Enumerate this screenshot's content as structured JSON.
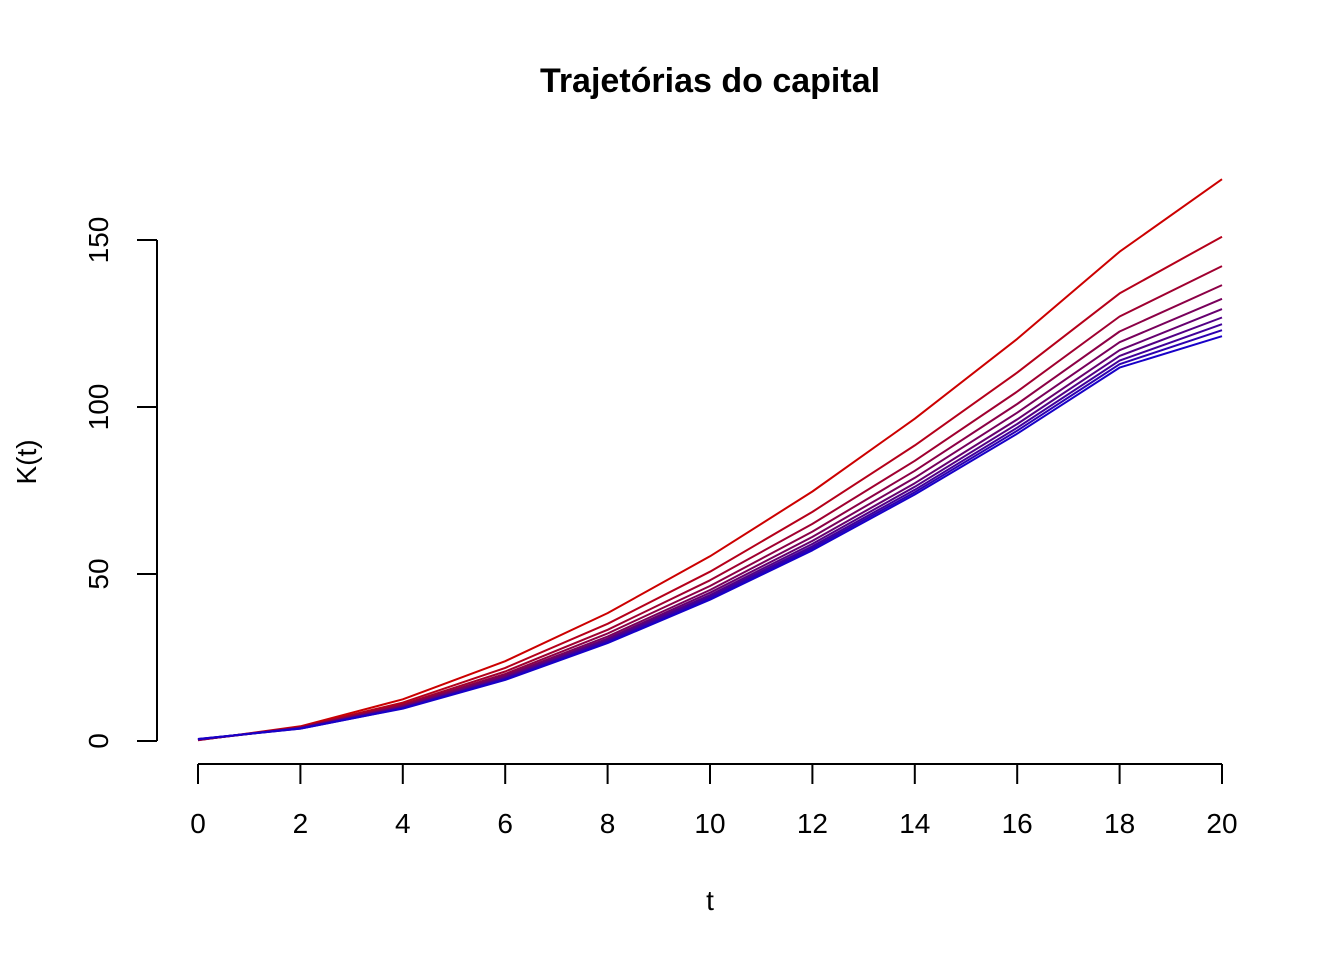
{
  "chart_data": {
    "type": "line",
    "title": "Trajetórias do capital",
    "xlabel": "t",
    "ylabel": "K(t)",
    "xlim": [
      0,
      20
    ],
    "ylim": [
      0,
      150
    ],
    "x_ticks": [
      "0",
      "2",
      "4",
      "6",
      "8",
      "10",
      "12",
      "14",
      "16",
      "18",
      "20"
    ],
    "y_ticks": [
      "0",
      "50",
      "100",
      "150"
    ],
    "grid": false,
    "legend": "none",
    "x": [
      0,
      2,
      4,
      6,
      8,
      10,
      12,
      14,
      16,
      18,
      20
    ],
    "series": [
      {
        "color": "#CC0000",
        "values": [
          0.2,
          4.4,
          12.5,
          23.9,
          38.3,
          55.3,
          74.7,
          96.5,
          120.4,
          146.5,
          168.2
        ]
      },
      {
        "color": "#B5001A",
        "values": [
          0.3,
          4.2,
          11.5,
          21.9,
          35.1,
          50.7,
          68.6,
          88.5,
          110.3,
          134.0,
          151.0
        ]
      },
      {
        "color": "#A00030",
        "values": [
          0.3,
          4.1,
          11.0,
          20.8,
          33.3,
          48.1,
          65.0,
          83.9,
          104.6,
          127.1,
          142.2
        ]
      },
      {
        "color": "#8C0046",
        "values": [
          0.4,
          4.0,
          10.6,
          20.1,
          32.2,
          46.4,
          62.7,
          80.9,
          100.9,
          122.6,
          136.5
        ]
      },
      {
        "color": "#78005C",
        "values": [
          0.4,
          3.9,
          10.4,
          19.6,
          31.3,
          45.2,
          61.1,
          78.8,
          98.3,
          119.4,
          132.4
        ]
      },
      {
        "color": "#660070",
        "values": [
          0.4,
          3.9,
          10.2,
          19.2,
          30.7,
          44.4,
          59.9,
          77.2,
          96.3,
          117.0,
          129.3
        ]
      },
      {
        "color": "#520086",
        "values": [
          0.5,
          3.8,
          10.0,
          18.9,
          30.3,
          43.7,
          59.0,
          76.1,
          94.9,
          115.3,
          126.8
        ]
      },
      {
        "color": "#40009A",
        "values": [
          0.5,
          3.8,
          9.9,
          18.7,
          29.9,
          43.2,
          58.3,
          75.2,
          93.8,
          113.9,
          124.8
        ]
      },
      {
        "color": "#2C00B0",
        "values": [
          0.6,
          3.7,
          9.8,
          18.5,
          29.6,
          42.7,
          57.7,
          74.5,
          92.9,
          112.8,
          123.0
        ]
      },
      {
        "color": "#1800C8",
        "values": [
          0.6,
          3.7,
          9.7,
          18.3,
          29.3,
          42.3,
          57.1,
          73.8,
          92.0,
          111.8,
          121.2
        ]
      }
    ]
  }
}
